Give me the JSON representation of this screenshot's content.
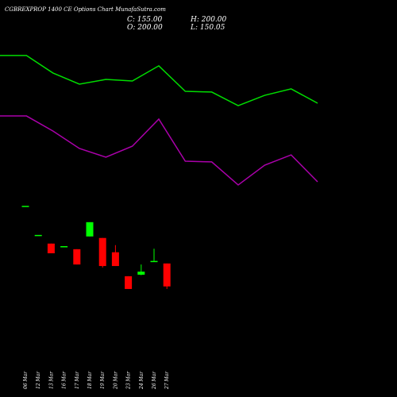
{
  "chart_data": [
    {
      "type": "line",
      "categories": [
        null,
        null,
        null,
        null,
        null,
        null,
        null,
        null,
        null,
        null,
        null,
        null,
        null
      ],
      "series": [
        {
          "color": "#00dd00",
          "values": [
            86.4,
            86.4,
            76.4,
            70,
            72.7,
            71.8,
            80.5,
            65.9,
            65.5,
            57.7,
            63.6,
            67.3,
            59.1
          ]
        },
        {
          "color": "#aa00aa",
          "values": [
            51.8,
            51.8,
            43.2,
            33.2,
            28.2,
            34.5,
            50,
            25.9,
            25.5,
            12.3,
            23.6,
            29.5,
            14.1
          ]
        }
      ],
      "ylim": [
        0,
        100
      ]
    },
    {
      "type": "candlestick",
      "title": "CGBREXPROP 1400 CE Options Chart MunafaSutra.com",
      "annotations": [
        "C: 155.00",
        "H: 200.00",
        "O: 200.00",
        "L: 150.05"
      ],
      "categories": [
        "06 Mar",
        "12 Mar",
        "13 Mar",
        "16 Mar",
        "17 Mar",
        "18 Mar",
        "19 Mar",
        "20 Mar",
        "23 Mar",
        "24 Mar",
        "26 Mar",
        "27 Mar"
      ],
      "open": [
        313,
        256,
        239,
        234,
        228,
        253,
        250,
        222,
        175,
        178,
        205,
        200
      ],
      "high": [
        313,
        256,
        239,
        234,
        228,
        281,
        250,
        236,
        175,
        198,
        229,
        200
      ],
      "low": [
        313,
        256,
        220,
        234,
        198,
        253,
        192,
        195,
        150,
        177,
        205,
        150.05
      ],
      "close": [
        313,
        256,
        220,
        234,
        198,
        281,
        195,
        195,
        150,
        184,
        205,
        155
      ],
      "up_color": "#00ff00",
      "down_color": "#ff0000",
      "ylim": [
        125,
        343
      ]
    }
  ]
}
